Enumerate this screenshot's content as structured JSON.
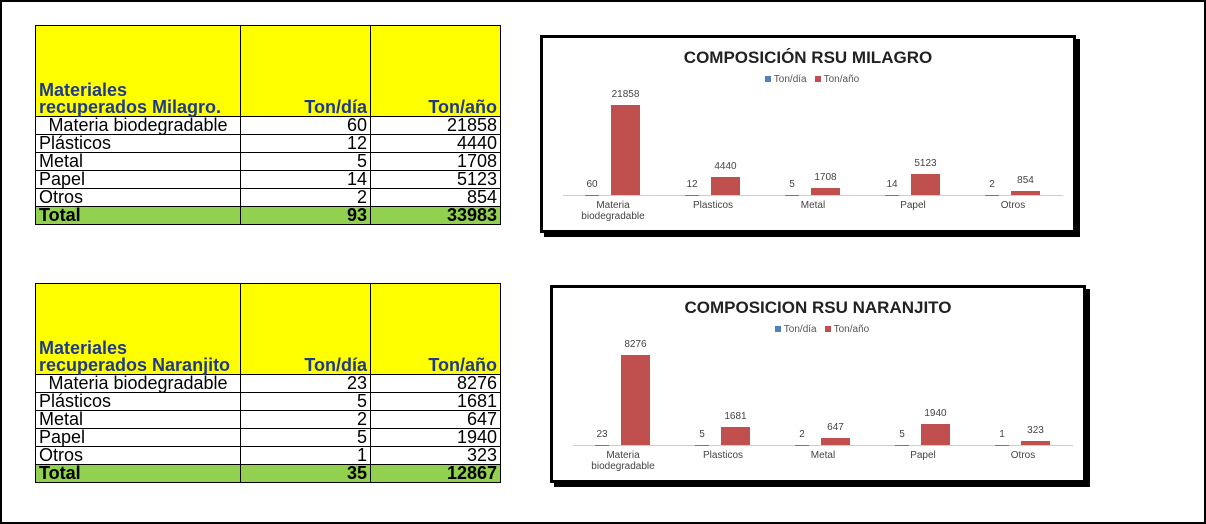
{
  "tables": [
    {
      "header": [
        "Materiales recuperados Milagro.",
        "Ton/día",
        "Ton/año"
      ],
      "rows": [
        [
          "Materia biodegradable",
          60,
          21858
        ],
        [
          "Plásticos",
          12,
          4440
        ],
        [
          "Metal",
          5,
          1708
        ],
        [
          "Papel",
          14,
          5123
        ],
        [
          "Otros",
          2,
          854
        ]
      ],
      "total": [
        "Total",
        93,
        33983
      ]
    },
    {
      "header": [
        "Materiales recuperados Naranjito",
        "Ton/día",
        "Ton/año"
      ],
      "rows": [
        [
          "Materia biodegradable",
          23,
          8276
        ],
        [
          "Plásticos",
          5,
          1681
        ],
        [
          "Metal",
          2,
          647
        ],
        [
          "Papel",
          5,
          1940
        ],
        [
          "Otros",
          1,
          323
        ]
      ],
      "total": [
        "Total",
        35,
        12867
      ]
    }
  ],
  "chart_data": [
    {
      "type": "bar",
      "title": "COMPOSICIÓN RSU MILAGRO",
      "legend": "top",
      "categories": [
        "Materia biodegradable",
        "Plasticos",
        "Metal",
        "Papel",
        "Otros"
      ],
      "series": [
        {
          "name": "Ton/día",
          "color": "#4f81bd",
          "values": [
            60,
            12,
            5,
            14,
            2
          ]
        },
        {
          "name": "Ton/año",
          "color": "#c0504d",
          "values": [
            21858,
            4440,
            1708,
            5123,
            854
          ]
        }
      ]
    },
    {
      "type": "bar",
      "title": "COMPOSICION RSU NARANJITO",
      "legend": "top",
      "categories": [
        "Materia biodegradable",
        "Plasticos",
        "Metal",
        "Papel",
        "Otros"
      ],
      "series": [
        {
          "name": "Ton/día",
          "color": "#4f81bd",
          "values": [
            23,
            5,
            2,
            5,
            1
          ]
        },
        {
          "name": "Ton/año",
          "color": "#c0504d",
          "values": [
            8276,
            1681,
            647,
            1940,
            323
          ]
        }
      ]
    }
  ]
}
